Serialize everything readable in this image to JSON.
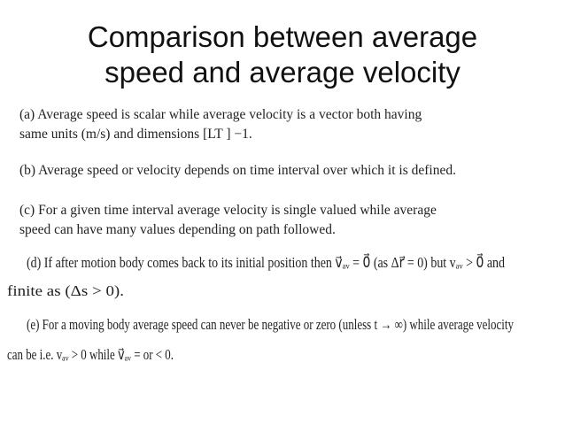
{
  "header": {
    "title_lines": [
      "Comparison between average",
      "speed and average velocity"
    ]
  },
  "points": [
    {
      "lines": [
        "(a) Average speed is scalar while average velocity is a vector both having",
        "same units (m/s) and dimensions [LT ] −1."
      ]
    },
    {
      "lines": [
        "(b) Average speed or velocity depends on time interval over which it is defined."
      ]
    },
    {
      "lines": [
        "(c) For a given time interval average velocity is single valued while average",
        "speed can have many values depending on path followed."
      ]
    },
    {
      "lines": [
        "(d) If after motion body comes back to its initial position then v⃗ₐᵥ = 0⃗  (as  Δr⃗ = 0)  but  vₐᵥ > 0⃗  and",
        "finite as (Δs > 0)."
      ]
    },
    {
      "lines": [
        "(e) For a moving body average speed can never be negative or zero (unless  t → ∞) while average velocity",
        "can be i.e.  vₐᵥ > 0  while  v⃗ₐᵥ = or < 0."
      ]
    }
  ]
}
